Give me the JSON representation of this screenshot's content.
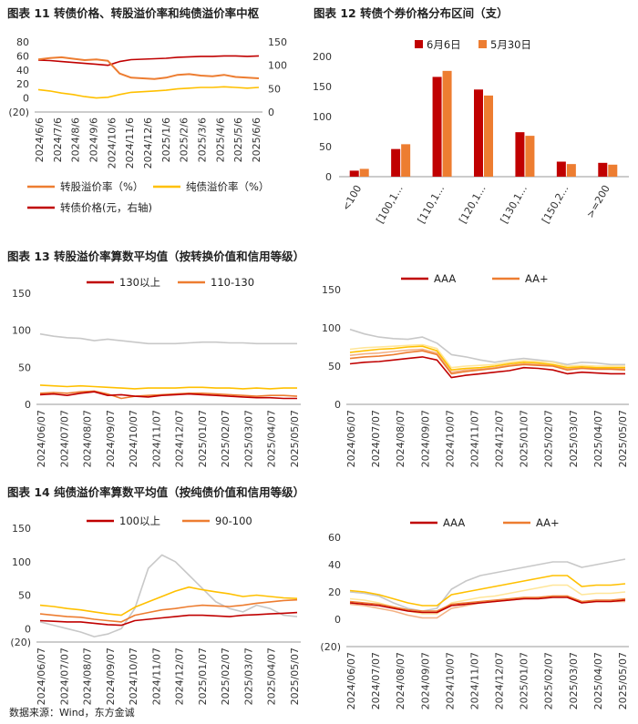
{
  "titles": {
    "c11": "图表 11  转债价格、转股溢价率和纯债溢价率中枢",
    "c12": "图表 12  转债个券价格分布区间（支）",
    "c13": "图表 13  转股溢价率算数平均值（按转换价值和信用等级）",
    "c14": "图表 14  纯债溢价率算数平均值（按纯债价值和信用等级）"
  },
  "source": "数据来源：Wind，东方金诚",
  "colors": {
    "darkred": "#c00000",
    "orange": "#ed7d31",
    "gold": "#ffc000",
    "lightgray": "#c8c8c8",
    "lightyellow": "#ffe699",
    "peach": "#f4b183"
  },
  "chart_data": [
    {
      "id": "c11",
      "type": "line",
      "x_ticks": [
        "2024/6/6",
        "2024/7/6",
        "2024/8/6",
        "2024/9/6",
        "2024/10/6",
        "2024/11/6",
        "2024/12/6",
        "2025/1/6",
        "2025/2/6",
        "2025/3/6",
        "2025/4/6",
        "2025/5/6",
        "2025/6/6"
      ],
      "y_left_ticks": [
        "(20)",
        "0",
        "20",
        "40",
        "60",
        "80"
      ],
      "y_right_ticks": [
        "0",
        "50",
        "100",
        "150"
      ],
      "ylim_left": [
        -20,
        80
      ],
      "ylim_right": [
        0,
        150
      ],
      "legend": [
        "转股溢价率（%）",
        "纯债溢价率（%）",
        "转债价格(元，右轴)"
      ],
      "series": [
        {
          "name": "转股溢价率（%）",
          "axis": "left",
          "color": "#ed7d31",
          "values": [
            55,
            57,
            58,
            56,
            54,
            55,
            53,
            35,
            29,
            28,
            27,
            29,
            33,
            34,
            32,
            31,
            33,
            30,
            29,
            28
          ]
        },
        {
          "name": "纯债溢价率（%）",
          "axis": "left",
          "color": "#ffc000",
          "values": [
            12,
            10,
            7,
            5,
            2,
            0,
            1,
            5,
            8,
            9,
            10,
            11,
            13,
            14,
            15,
            15,
            16,
            15,
            14,
            15
          ]
        },
        {
          "name": "转债价格(元，右轴)",
          "axis": "right",
          "color": "#c00000",
          "values": [
            111,
            110,
            108,
            106,
            104,
            102,
            100,
            108,
            112,
            113,
            114,
            115,
            117,
            118,
            119,
            119,
            120,
            120,
            119,
            120
          ]
        }
      ]
    },
    {
      "id": "c12",
      "type": "bar",
      "categories": [
        "<100",
        "[100,1...",
        "[110,1...",
        "[120,1...",
        "[130,1...",
        "[150,2...",
        ">=200"
      ],
      "y_ticks": [
        "0",
        "50",
        "100",
        "150",
        "200"
      ],
      "ylim": [
        0,
        200
      ],
      "legend": [
        "6月6日",
        "5月30日"
      ],
      "series": [
        {
          "name": "6月6日",
          "color": "#c00000",
          "values": [
            10,
            46,
            166,
            145,
            74,
            25,
            23
          ]
        },
        {
          "name": "5月30日",
          "color": "#ed7d31",
          "values": [
            13,
            54,
            176,
            135,
            68,
            21,
            20
          ]
        }
      ]
    },
    {
      "id": "c13a",
      "type": "line",
      "x_ticks": [
        "2024/06/07",
        "2024/07/07",
        "2024/08/07",
        "2024/09/07",
        "2024/10/07",
        "2024/11/07",
        "2024/12/07",
        "2025/01/07",
        "2025/02/07",
        "2025/03/07",
        "2025/04/07",
        "2025/05/07"
      ],
      "y_ticks": [
        "0",
        "50",
        "100",
        "150"
      ],
      "ylim": [
        0,
        150
      ],
      "legend": [
        "130以上",
        "110-130"
      ],
      "series": [
        {
          "name": "130以上",
          "color": "#c00000",
          "values": [
            13,
            14,
            12,
            15,
            17,
            12,
            13,
            11,
            10,
            12,
            13,
            14,
            13,
            12,
            11,
            10,
            9,
            9,
            8,
            8
          ]
        },
        {
          "name": "110-130",
          "color": "#ed7d31",
          "values": [
            15,
            16,
            15,
            17,
            18,
            14,
            8,
            11,
            12,
            13,
            14,
            15,
            15,
            14,
            13,
            12,
            11,
            12,
            12,
            11
          ]
        },
        {
          "color": "#ffc000",
          "values": [
            26,
            25,
            24,
            25,
            24,
            23,
            22,
            21,
            22,
            22,
            22,
            23,
            23,
            22,
            22,
            21,
            22,
            21,
            22,
            22
          ]
        },
        {
          "color": "#c8c8c8",
          "values": [
            95,
            92,
            90,
            89,
            86,
            88,
            86,
            84,
            82,
            82,
            82,
            83,
            84,
            84,
            83,
            83,
            82,
            82,
            82,
            82
          ]
        }
      ]
    },
    {
      "id": "c13b",
      "type": "line",
      "x_ticks": [
        "2024/06/07",
        "2024/07/07",
        "2024/08/07",
        "2024/09/07",
        "2024/10/07",
        "2024/11/07",
        "2024/12/07",
        "2025/01/07",
        "2025/02/07",
        "2025/03/07",
        "2025/04/07",
        "2025/05/07"
      ],
      "y_ticks": [
        "0",
        "50",
        "100",
        "150"
      ],
      "ylim": [
        0,
        150
      ],
      "legend": [
        "AAA",
        "AA+"
      ],
      "series": [
        {
          "name": "AAA",
          "color": "#c00000",
          "values": [
            53,
            55,
            56,
            58,
            60,
            62,
            58,
            35,
            38,
            40,
            42,
            44,
            48,
            47,
            45,
            40,
            42,
            41,
            40,
            40
          ]
        },
        {
          "name": "AA+",
          "color": "#ed7d31",
          "values": [
            60,
            62,
            63,
            65,
            68,
            70,
            65,
            40,
            43,
            45,
            47,
            50,
            52,
            51,
            50,
            45,
            47,
            46,
            46,
            45
          ]
        },
        {
          "color": "#ffc000",
          "values": [
            68,
            70,
            72,
            73,
            75,
            76,
            70,
            45,
            47,
            48,
            50,
            53,
            55,
            54,
            52,
            48,
            49,
            48,
            48,
            48
          ]
        },
        {
          "color": "#f4b183",
          "values": [
            64,
            66,
            67,
            69,
            71,
            72,
            67,
            42,
            45,
            46,
            48,
            51,
            53,
            52,
            51,
            47,
            48,
            47,
            47,
            46
          ]
        },
        {
          "color": "#ffe699",
          "values": [
            72,
            74,
            75,
            76,
            77,
            78,
            73,
            48,
            50,
            51,
            52,
            55,
            57,
            56,
            55,
            50,
            51,
            50,
            50,
            50
          ]
        },
        {
          "color": "#c8c8c8",
          "values": [
            98,
            92,
            88,
            86,
            85,
            88,
            80,
            65,
            62,
            58,
            55,
            58,
            60,
            58,
            56,
            52,
            55,
            54,
            52,
            52
          ]
        }
      ]
    },
    {
      "id": "c14a",
      "type": "line",
      "x_ticks": [
        "2024/06/07",
        "2024/07/07",
        "2024/08/07",
        "2024/09/07",
        "2024/10/07",
        "2024/11/07",
        "2024/12/07",
        "2025/01/07",
        "2025/02/07",
        "2025/03/07",
        "2025/04/07",
        "2025/05/07"
      ],
      "y_ticks": [
        "(20)",
        "0",
        "50",
        "100",
        "150"
      ],
      "ylim": [
        -20,
        150
      ],
      "legend": [
        "100以上",
        "90-100"
      ],
      "series": [
        {
          "name": "100以上",
          "color": "#c00000",
          "values": [
            12,
            11,
            10,
            10,
            8,
            6,
            5,
            12,
            14,
            16,
            18,
            20,
            20,
            19,
            18,
            20,
            21,
            22,
            23,
            24
          ]
        },
        {
          "name": "90-100",
          "color": "#ed7d31",
          "values": [
            22,
            20,
            18,
            17,
            14,
            12,
            10,
            20,
            24,
            28,
            30,
            33,
            35,
            34,
            33,
            35,
            38,
            40,
            42,
            43
          ]
        },
        {
          "color": "#ffc000",
          "values": [
            35,
            33,
            30,
            28,
            25,
            22,
            20,
            32,
            40,
            48,
            56,
            62,
            58,
            55,
            52,
            48,
            50,
            48,
            46,
            45
          ]
        },
        {
          "color": "#c8c8c8",
          "values": [
            10,
            5,
            0,
            -5,
            -12,
            -8,
            0,
            30,
            90,
            110,
            100,
            80,
            60,
            40,
            30,
            25,
            35,
            30,
            20,
            18
          ]
        }
      ]
    },
    {
      "id": "c14b",
      "type": "line",
      "x_ticks": [
        "2024/06/07",
        "2024/07/07",
        "2024/08/07",
        "2024/09/07",
        "2024/10/07",
        "2024/11/07",
        "2024/12/07",
        "2025/01/07",
        "2025/02/07",
        "2025/03/07",
        "2025/04/07",
        "2025/05/07"
      ],
      "y_ticks": [
        "(20)",
        "0",
        "20",
        "40",
        "60"
      ],
      "ylim": [
        -20,
        60
      ],
      "legend": [
        "AAA",
        "AA+"
      ],
      "series": [
        {
          "name": "AAA",
          "color": "#c00000",
          "values": [
            12,
            11,
            10,
            8,
            6,
            5,
            5,
            10,
            11,
            12,
            13,
            14,
            15,
            15,
            16,
            16,
            12,
            13,
            13,
            14
          ]
        },
        {
          "name": "AA+",
          "color": "#ed7d31",
          "values": [
            13,
            12,
            11,
            9,
            7,
            6,
            6,
            11,
            12,
            13,
            14,
            15,
            16,
            16,
            17,
            17,
            13,
            14,
            14,
            15
          ]
        },
        {
          "color": "#ffc000",
          "values": [
            21,
            20,
            18,
            15,
            12,
            10,
            10,
            18,
            20,
            22,
            24,
            26,
            28,
            30,
            32,
            32,
            24,
            25,
            25,
            26
          ]
        },
        {
          "color": "#ffe699",
          "values": [
            15,
            14,
            12,
            9,
            6,
            4,
            4,
            12,
            14,
            16,
            17,
            19,
            21,
            23,
            25,
            25,
            18,
            19,
            19,
            20
          ]
        },
        {
          "color": "#f4b183",
          "values": [
            11,
            10,
            8,
            6,
            3,
            1,
            1,
            8,
            10,
            12,
            13,
            14,
            15,
            16,
            17,
            17,
            12,
            13,
            13,
            13
          ]
        },
        {
          "color": "#c8c8c8",
          "values": [
            20,
            19,
            17,
            12,
            8,
            6,
            8,
            22,
            28,
            32,
            34,
            36,
            38,
            40,
            42,
            42,
            38,
            40,
            42,
            44
          ]
        }
      ]
    }
  ]
}
